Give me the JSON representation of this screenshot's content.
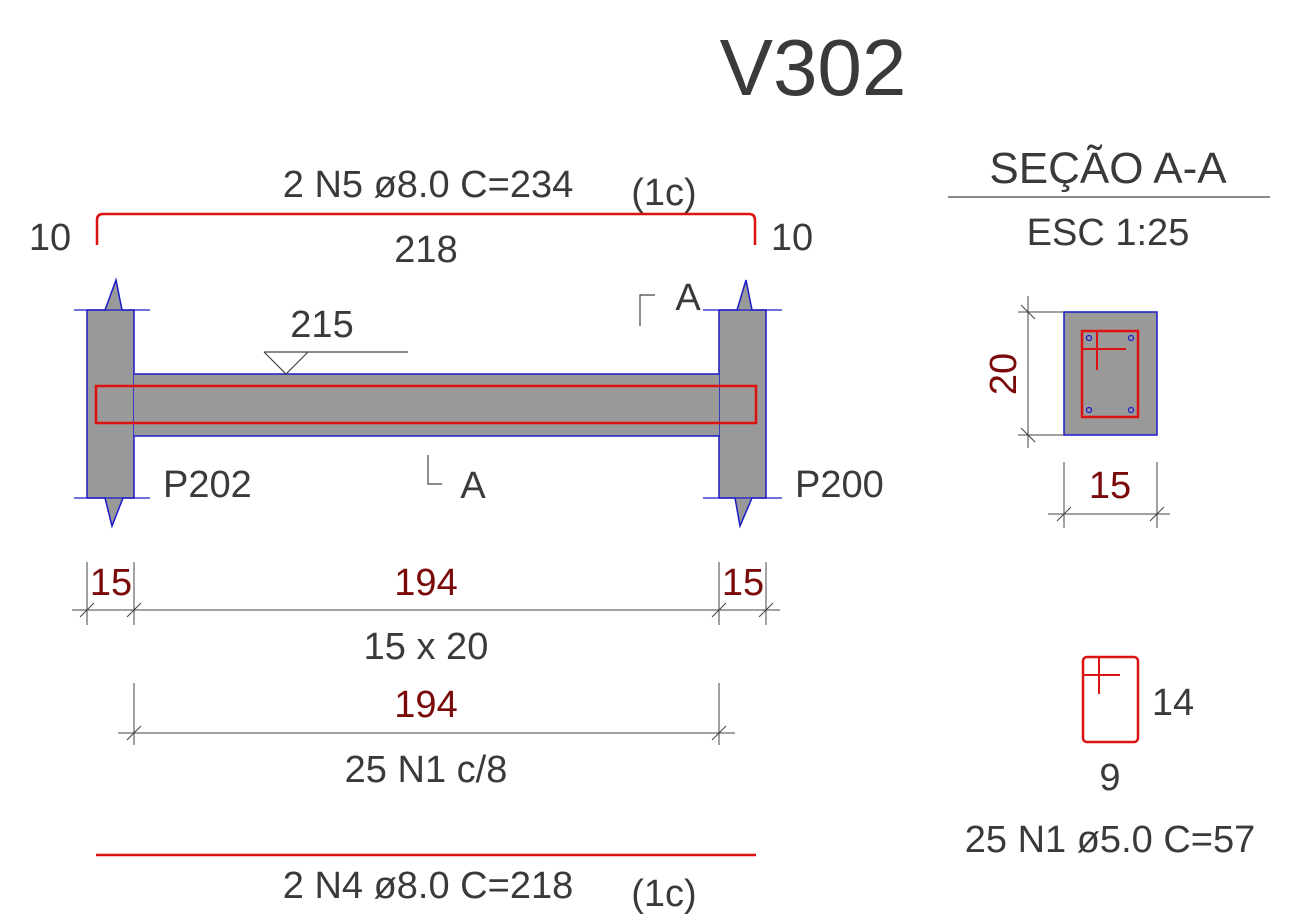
{
  "beam_title": "V302",
  "top_bar": {
    "label": "2 N5 ø8.0 C=234",
    "layer": "(1c)",
    "hook_left": "10",
    "hook_right": "10",
    "straight_length": "218"
  },
  "beam": {
    "span_level": "215",
    "support_left": "P202",
    "support_right": "P200",
    "cut_marker": "A"
  },
  "dimensions": {
    "support_left_width": "15",
    "clear_span": "194",
    "support_right_width": "15",
    "section_size": "15 x 20",
    "stirrup_span": "194",
    "stirrup_spec": "25 N1 c/8"
  },
  "bottom_bar": {
    "label": "2 N4 ø8.0 C=218",
    "layer": "(1c)"
  },
  "section": {
    "title": "SEÇÃO A-A",
    "scale": "ESC 1:25",
    "height": "20",
    "width": "15"
  },
  "stirrup_detail": {
    "height": "14",
    "width": "9",
    "label": "25 N1 ø5.0 C=57"
  },
  "colors": {
    "concrete": "#999999",
    "outline": "#1a1acc",
    "rebar": "#dd1111",
    "dimension_text": "#7a0a0a",
    "text": "#3a3a3a"
  }
}
